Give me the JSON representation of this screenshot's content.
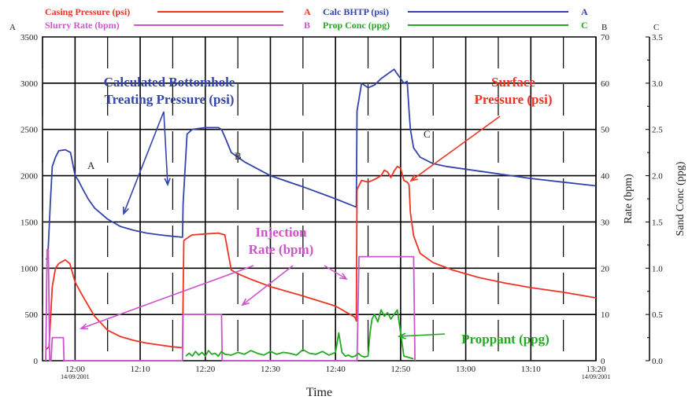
{
  "chart_data": {
    "type": "line",
    "xlabel": "Time",
    "x_ticks": [
      "12:00",
      "12:10",
      "12:20",
      "12:30",
      "12:40",
      "12:50",
      "13:00",
      "13:10",
      "13:20"
    ],
    "x_range_min": [
      -5,
      80
    ],
    "date_labels": [
      "14/09/2001",
      "14/09/2001"
    ],
    "axes": {
      "A": {
        "letter": "A",
        "range": [
          0,
          3500
        ],
        "ticks": [
          "0",
          "500",
          "1000",
          "1500",
          "2000",
          "2500",
          "3000",
          "3500"
        ]
      },
      "B": {
        "letter": "B",
        "label": "Rate (bpm)",
        "range": [
          0,
          70
        ],
        "ticks": [
          "0",
          "10",
          "20",
          "30",
          "40",
          "50",
          "60",
          "70"
        ]
      },
      "C": {
        "letter": "C",
        "label": "Sand Conc (ppg)",
        "range": [
          0,
          3.5
        ],
        "ticks": [
          "0.0",
          "0.5",
          "1.0",
          "1.5",
          "2.0",
          "2.5",
          "3.0",
          "3.5"
        ]
      }
    },
    "legend": [
      {
        "name": "Casing Pressure (psi)",
        "axis": "A",
        "color": "#ee3322"
      },
      {
        "name": "Slurry Rate (bpm)",
        "axis": "B",
        "color": "#cc55cc"
      },
      {
        "name": "Calc BHTP (psi)",
        "axis": "A",
        "color": "#3344aa"
      },
      {
        "name": "Prop Conc (ppg)",
        "axis": "C",
        "color": "#22aa22"
      }
    ],
    "series": [
      {
        "name": "Calc BHTP (psi)",
        "axis": "A",
        "color": "#3344aa",
        "x": [
          -4.5,
          -4.2,
          -3.8,
          -3.5,
          -3,
          -2.5,
          -1.5,
          -0.7,
          0,
          0.5,
          1,
          2,
          3,
          5,
          7,
          9,
          11,
          13,
          15,
          16.5,
          16.6,
          17.2,
          18,
          20,
          22,
          22.5,
          23,
          24,
          26,
          30,
          35,
          40,
          43.2,
          43.3,
          44,
          45,
          46,
          47,
          48,
          49,
          49.5,
          50,
          50.5,
          51,
          51.3,
          51.5,
          52,
          53,
          55,
          57,
          60,
          65,
          70,
          75,
          80
        ],
        "y": [
          1100,
          1100,
          1700,
          2100,
          2200,
          2270,
          2280,
          2250,
          2000,
          1950,
          1880,
          1750,
          1650,
          1530,
          1450,
          1410,
          1380,
          1360,
          1345,
          1335,
          1700,
          2450,
          2500,
          2520,
          2520,
          2500,
          2420,
          2250,
          2150,
          2000,
          1880,
          1750,
          1660,
          2700,
          3000,
          2950,
          2980,
          3050,
          3100,
          3150,
          3100,
          3050,
          3000,
          3020,
          2700,
          2500,
          2300,
          2200,
          2130,
          2100,
          2070,
          2020,
          1970,
          1930,
          1890
        ]
      },
      {
        "name": "Casing Pressure (psi)",
        "axis": "A",
        "color": "#ee3322",
        "x": [
          -4.5,
          -4,
          -3.5,
          -3,
          -2.5,
          -2,
          -1.5,
          -0.8,
          0,
          1,
          2,
          3,
          5,
          7,
          9,
          11,
          13,
          15,
          16.5,
          16.7,
          17.5,
          18,
          20,
          22,
          23,
          24,
          25,
          27,
          30,
          35,
          40,
          43,
          43.2,
          43.3,
          44,
          45,
          46,
          47,
          47.5,
          48,
          48.5,
          49,
          49.5,
          50,
          50.5,
          51,
          51.3,
          51.5,
          52,
          53,
          55,
          58,
          62,
          66,
          70,
          75,
          80
        ],
        "y": [
          120,
          150,
          800,
          1000,
          1050,
          1070,
          1090,
          1050,
          850,
          720,
          600,
          480,
          330,
          260,
          220,
          190,
          170,
          150,
          140,
          1300,
          1340,
          1360,
          1370,
          1380,
          1360,
          980,
          940,
          880,
          800,
          700,
          590,
          470,
          430,
          1850,
          1950,
          1930,
          1960,
          2000,
          2060,
          2040,
          1980,
          2050,
          2100,
          2080,
          1950,
          1930,
          1900,
          1600,
          1350,
          1160,
          1060,
          980,
          900,
          840,
          790,
          740,
          680
        ]
      },
      {
        "name": "Slurry Rate (bpm)",
        "axis": "B",
        "color": "#cc55cc",
        "x": [
          -4.5,
          -4.3,
          -4.1,
          -3.9,
          -3.7,
          -3.5,
          -1.8,
          -1.7,
          16.5,
          16.6,
          22.5,
          22.6,
          43.3,
          43.6,
          52,
          52.2
        ],
        "y": [
          0,
          24,
          24,
          0,
          0,
          5,
          5,
          0,
          0,
          10,
          10,
          0,
          0,
          22.5,
          22.5,
          0
        ]
      },
      {
        "name": "Prop Conc (ppg)",
        "axis": "C",
        "color": "#22aa22",
        "x": [
          17,
          17.5,
          18,
          18.5,
          19,
          19.5,
          20,
          20.5,
          21,
          21.5,
          22,
          22.5,
          23,
          24,
          25,
          26,
          27,
          28,
          29,
          30,
          31,
          32,
          33,
          34,
          35,
          36,
          37,
          38,
          39,
          40,
          40.5,
          41,
          41.5,
          42,
          42.5,
          43,
          43.5,
          44,
          44.5,
          45,
          45.3,
          45.6,
          46,
          46.5,
          47,
          47.5,
          48,
          48.5,
          49,
          49.5,
          50,
          50.5,
          51,
          51.5,
          52
        ],
        "y": [
          0.05,
          0.08,
          0.05,
          0.1,
          0.06,
          0.09,
          0.05,
          0.11,
          0.07,
          0.08,
          0.05,
          0.1,
          0.07,
          0.06,
          0.09,
          0.07,
          0.11,
          0.08,
          0.06,
          0.1,
          0.07,
          0.09,
          0.08,
          0.06,
          0.12,
          0.08,
          0.07,
          0.1,
          0.06,
          0.09,
          0.3,
          0.09,
          0.05,
          0.06,
          0.04,
          0.05,
          0.08,
          0.05,
          0.04,
          0.05,
          0.3,
          0.45,
          0.5,
          0.42,
          0.55,
          0.48,
          0.52,
          0.45,
          0.5,
          0.55,
          0.3,
          0.05,
          0.04,
          0.03,
          0.02
        ]
      }
    ],
    "annotations": [
      {
        "id": "bhtp",
        "lines": [
          "Calculated Bottomhole",
          "Treating Pressure (psi)"
        ],
        "color": "#3344aa"
      },
      {
        "id": "surface",
        "lines": [
          "Surface",
          "Pressure (psi)"
        ],
        "color": "#ee3322"
      },
      {
        "id": "injection",
        "lines": [
          "Injection",
          "Rate (bpm)"
        ],
        "color": "#cc55cc"
      },
      {
        "id": "proppant",
        "lines": [
          "Proppant (ppg)"
        ],
        "color": "#22aa22"
      }
    ],
    "markers": [
      "A",
      "B",
      "C"
    ]
  }
}
